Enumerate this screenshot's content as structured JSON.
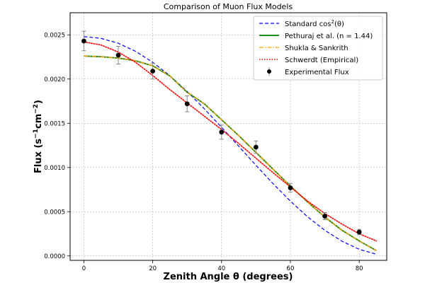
{
  "chart_data": {
    "type": "line",
    "title": "Comparison of Muon Flux Models",
    "xlabel": "Zenith Angle θ (degrees)",
    "ylabel_main": "Flux (s",
    "ylabel_mid": "cm",
    "ylabel_end": ")",
    "ylabel_sup": "−1",
    "ylabel_sup2": "−2",
    "xlim": [
      -4,
      88
    ],
    "ylim": [
      -5e-05,
      0.00275
    ],
    "xticks": [
      0,
      20,
      40,
      60,
      80
    ],
    "xtick_labels": [
      "0",
      "20",
      "40",
      "60",
      "80"
    ],
    "yticks": [
      0,
      0.0005,
      0.001,
      0.0015,
      0.002,
      0.0025
    ],
    "ytick_labels": [
      "0.0000",
      "0.0005",
      "0.0010",
      "0.0015",
      "0.0020",
      "0.0025"
    ],
    "grid": true,
    "legend_position": "top-right",
    "series": [
      {
        "name": "Standard cos²(θ)",
        "legend_prefix": "Standard cos",
        "legend_sup": "2",
        "legend_suffix": "(θ)",
        "style": "dashed",
        "color": "#0000ff",
        "x": [
          0,
          5,
          10,
          15,
          20,
          25,
          30,
          35,
          40,
          45,
          50,
          55,
          60,
          65,
          70,
          75,
          80,
          85
        ],
        "y": [
          0.00248,
          0.00246,
          0.002405,
          0.002314,
          0.00219,
          0.002037,
          0.00186,
          0.001664,
          0.001455,
          0.00124,
          0.001025,
          0.000816,
          0.00062,
          0.000443,
          0.00029,
          0.000166,
          7.5e-05,
          1.9e-05
        ]
      },
      {
        "name": "Pethuraj et al. (n = 1.44)",
        "legend_text": "Pethuraj et al. (n = 1.44)",
        "style": "solid",
        "color": "#008000",
        "x": [
          0,
          5,
          10,
          15,
          20,
          25,
          30,
          35,
          40,
          45,
          50,
          55,
          60,
          65,
          70,
          75,
          80,
          85
        ],
        "y": [
          0.00226,
          0.002253,
          0.002237,
          0.002207,
          0.00215,
          0.002035,
          0.00185,
          0.00172,
          0.00154,
          0.00136,
          0.00117,
          0.00098,
          0.00079,
          0.00061,
          0.00044,
          0.00029,
          0.00017,
          6e-05
        ]
      },
      {
        "name": "Shukla & Sankrith",
        "legend_text": "Shukla & Sankrith",
        "style": "dashdot",
        "color": "#ffa500",
        "x": [
          0,
          5,
          10,
          15,
          20,
          25,
          30,
          35,
          40,
          45,
          50,
          55,
          60,
          65,
          70,
          75,
          80,
          85
        ],
        "y": [
          0.00226,
          0.002253,
          0.002237,
          0.002207,
          0.00215,
          0.002035,
          0.00185,
          0.00172,
          0.00154,
          0.00136,
          0.00117,
          0.00098,
          0.00079,
          0.00061,
          0.00044,
          0.00029,
          0.00017,
          6e-05
        ]
      },
      {
        "name": "Schwerdt (Empirical)",
        "legend_text": "Schwerdt (Empirical)",
        "style": "dotted",
        "color": "#ff0000",
        "x": [
          0,
          5,
          10,
          15,
          20,
          25,
          30,
          35,
          40,
          45,
          50,
          55,
          60,
          65,
          70,
          75,
          80,
          85
        ],
        "y": [
          0.00242,
          0.002385,
          0.002305,
          0.00219,
          0.00204,
          0.00188,
          0.00173,
          0.00158,
          0.00143,
          0.00127,
          0.001105,
          0.00094,
          0.00078,
          0.00062,
          0.00048,
          0.00036,
          0.00025,
          0.00017
        ]
      }
    ],
    "experimental": {
      "name": "Experimental Flux",
      "color": "#000000",
      "x": [
        0,
        10,
        20,
        30,
        40,
        50,
        60,
        70,
        80
      ],
      "y": [
        0.00243,
        0.00227,
        0.00209,
        0.00172,
        0.0014,
        0.00123,
        0.00077,
        0.00045,
        0.00027
      ],
      "err": [
        0.00011,
        0.0001,
        9e-05,
        9e-05,
        8e-05,
        7e-05,
        5e-05,
        4e-05,
        3e-05
      ]
    }
  }
}
